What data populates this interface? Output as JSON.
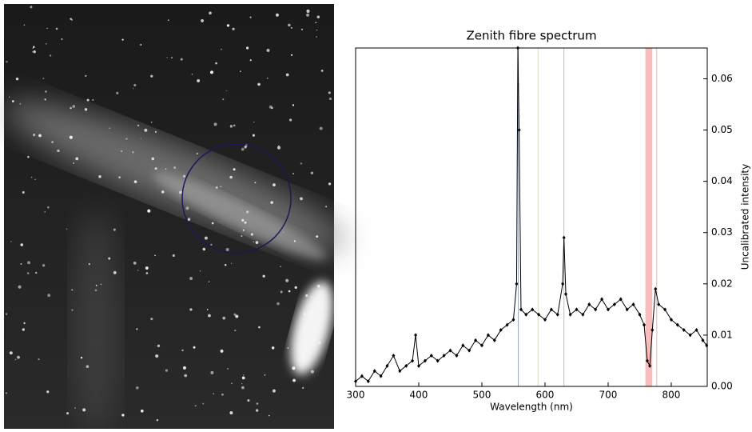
{
  "chart_data": {
    "type": "line",
    "title": "Zenith fibre spectrum",
    "xlabel": "Wavelength (nm)",
    "ylabel": "Uncalibrated intensity",
    "color": "#000000",
    "x": [
      300,
      310,
      320,
      330,
      340,
      350,
      360,
      370,
      380,
      390,
      395,
      400,
      410,
      420,
      430,
      440,
      450,
      460,
      470,
      480,
      490,
      500,
      510,
      520,
      530,
      540,
      550,
      555,
      557,
      559,
      562,
      570,
      580,
      590,
      600,
      610,
      620,
      628,
      630,
      633,
      640,
      650,
      660,
      670,
      680,
      690,
      700,
      710,
      720,
      730,
      740,
      750,
      757,
      762,
      766,
      770,
      775,
      780,
      790,
      800,
      810,
      820,
      830,
      840,
      850,
      856
    ],
    "values": [
      0.001,
      0.002,
      0.001,
      0.003,
      0.002,
      0.004,
      0.006,
      0.003,
      0.004,
      0.005,
      0.01,
      0.004,
      0.005,
      0.006,
      0.005,
      0.006,
      0.007,
      0.006,
      0.008,
      0.007,
      0.009,
      0.008,
      0.01,
      0.009,
      0.011,
      0.012,
      0.013,
      0.02,
      0.066,
      0.05,
      0.015,
      0.014,
      0.015,
      0.014,
      0.013,
      0.015,
      0.014,
      0.02,
      0.029,
      0.018,
      0.014,
      0.015,
      0.014,
      0.016,
      0.015,
      0.017,
      0.015,
      0.016,
      0.017,
      0.015,
      0.016,
      0.014,
      0.012,
      0.005,
      0.004,
      0.011,
      0.019,
      0.016,
      0.015,
      0.013,
      0.012,
      0.011,
      0.01,
      0.011,
      0.009,
      0.008
    ],
    "xlim": [
      300,
      857
    ],
    "xticks": [
      300,
      400,
      500,
      600,
      700,
      800
    ],
    "ylim": [
      0,
      0.066
    ],
    "yticks": [
      {
        "value": 0,
        "label": "0.00"
      },
      {
        "value": 0.01,
        "label": "0.01"
      },
      {
        "value": 0.02,
        "label": "0.02"
      },
      {
        "value": 0.03,
        "label": "0.03"
      },
      {
        "value": 0.04,
        "label": "0.04"
      },
      {
        "value": 0.05,
        "label": "0.05"
      },
      {
        "value": 0.06,
        "label": "0.06"
      }
    ],
    "vlines": [
      {
        "x": 557.7,
        "color": "#9aa6c8"
      },
      {
        "x": 589,
        "color": "#e8dca0"
      },
      {
        "x": 630,
        "color": "#d8b0c8"
      },
      {
        "x": 777,
        "color": "#f0b0b0"
      }
    ],
    "bands": [
      {
        "range": [
          759,
          770
        ],
        "color": "#f4a0a0"
      }
    ]
  }
}
